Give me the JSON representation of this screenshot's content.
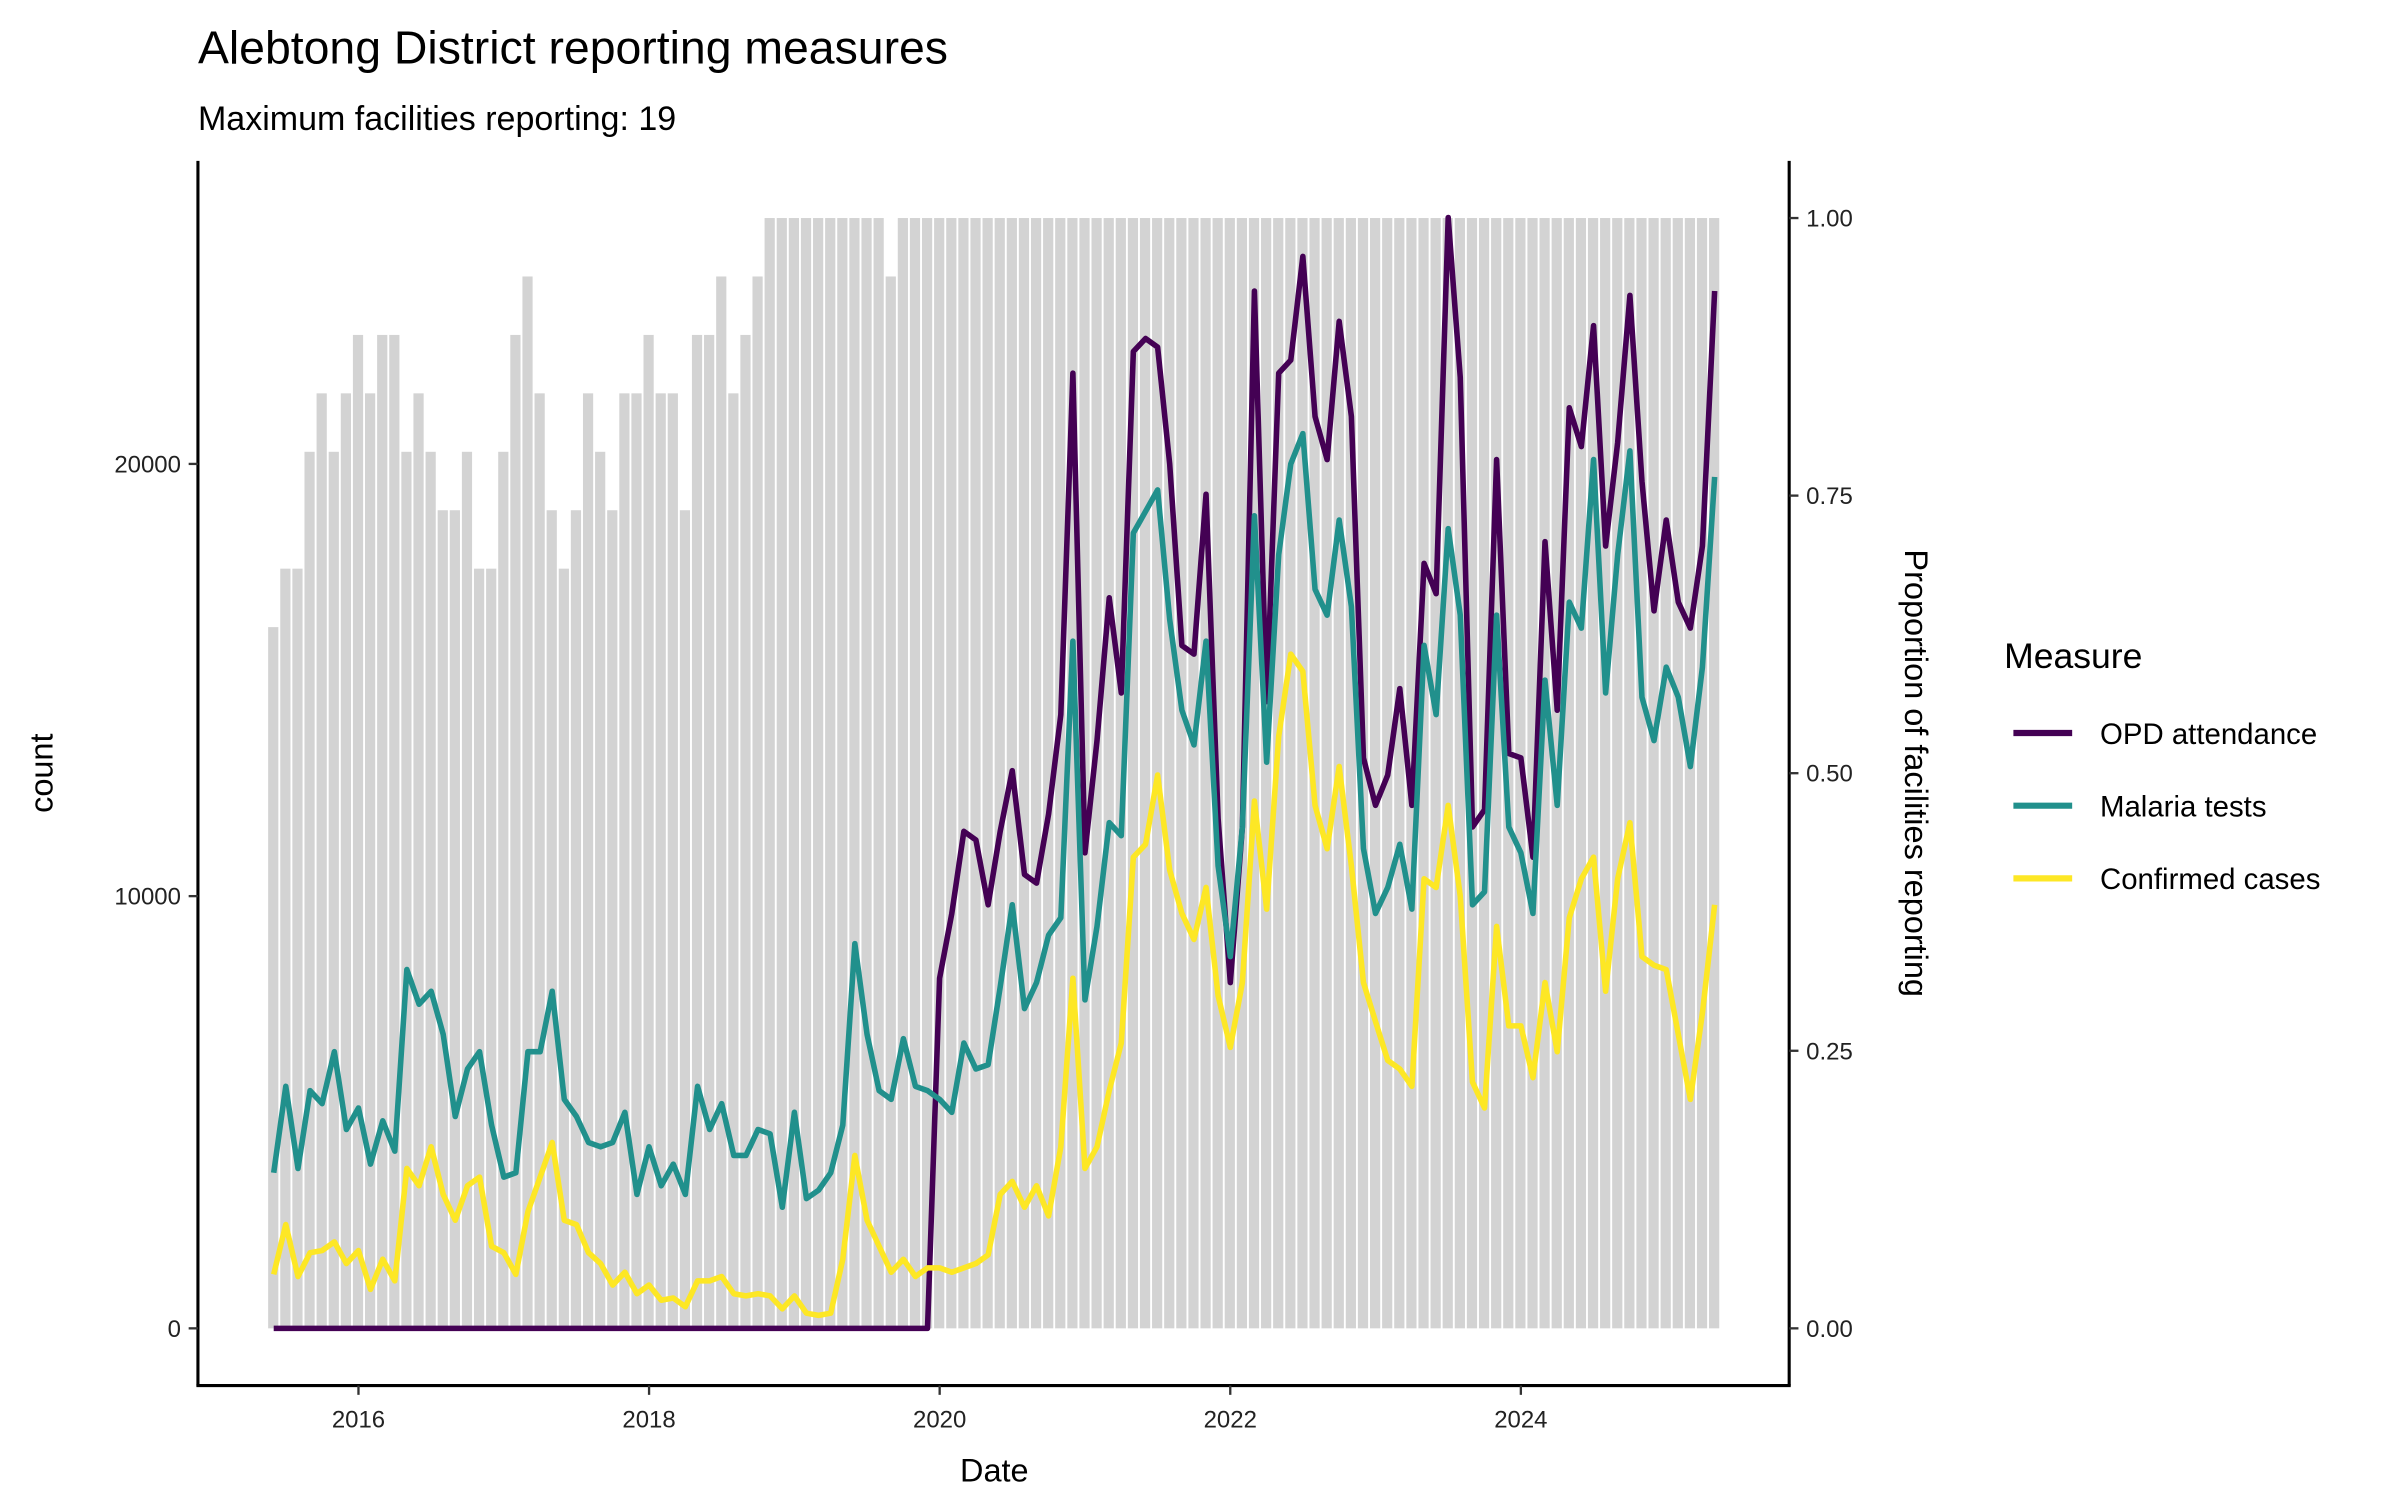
{
  "chart_data": {
    "type": "line",
    "title": "Alebtong District reporting measures",
    "subtitle": "Maximum facilities reporting: 19",
    "xlabel": "Date",
    "ylabel": "count",
    "y2label": "Proportion of facilities reporting",
    "x_start": "2015-06",
    "x_frequency": "monthly",
    "x_count": 120,
    "x_ticks": [
      "2016",
      "2018",
      "2020",
      "2022",
      "2024"
    ],
    "y_ticks": [
      "0",
      "10000",
      "20000"
    ],
    "y2_ticks": [
      "0.00",
      "0.25",
      "0.50",
      "0.75",
      "1.00"
    ],
    "ylim": [
      -1300,
      26900
    ],
    "y2lim": [
      0,
      1
    ],
    "max_facilities": 19,
    "legend": {
      "title": "Measure",
      "placement": "right"
    },
    "bars": {
      "name": "Facilities reporting",
      "color": "#d3d3d3",
      "values": [
        12,
        13,
        13,
        15,
        16,
        15,
        16,
        17,
        16,
        17,
        17,
        15,
        16,
        15,
        14,
        14,
        15,
        13,
        13,
        15,
        17,
        18,
        16,
        14,
        13,
        14,
        16,
        15,
        14,
        16,
        16,
        17,
        16,
        16,
        14,
        17,
        17,
        18,
        16,
        17,
        18,
        19,
        19,
        19,
        19,
        19,
        19,
        19,
        19,
        19,
        19,
        18,
        19,
        19,
        19,
        19,
        19,
        19,
        19,
        19,
        19,
        19,
        19,
        19,
        19,
        19,
        19,
        19,
        19,
        19,
        19,
        19,
        19,
        19,
        19,
        19,
        19,
        19,
        19,
        19,
        19,
        19,
        19,
        19,
        19,
        19,
        19,
        19,
        19,
        19,
        19,
        19,
        19,
        19,
        19,
        19,
        19,
        19,
        19,
        19,
        19,
        19,
        19,
        19,
        19,
        19,
        19,
        19,
        19,
        19,
        19,
        19,
        19,
        19,
        19,
        19,
        19,
        19,
        19,
        19
      ]
    },
    "series": [
      {
        "name": "OPD attendance",
        "color": "#440154",
        "values": [
          0,
          0,
          0,
          0,
          0,
          0,
          0,
          0,
          0,
          0,
          0,
          0,
          0,
          0,
          0,
          0,
          0,
          0,
          0,
          0,
          0,
          0,
          0,
          0,
          0,
          0,
          0,
          0,
          0,
          0,
          0,
          0,
          0,
          0,
          0,
          0,
          0,
          0,
          0,
          0,
          0,
          0,
          0,
          0,
          0,
          0,
          0,
          0,
          0,
          0,
          0,
          0,
          0,
          0,
          0,
          8100,
          9600,
          11500,
          11300,
          9800,
          11500,
          12900,
          10500,
          10300,
          11900,
          14200,
          22100,
          11000,
          13600,
          16900,
          14700,
          22600,
          22900,
          22700,
          20000,
          15800,
          15600,
          19300,
          11800,
          8000,
          11600,
          24000,
          14500,
          22100,
          22400,
          24800,
          21100,
          20100,
          23300,
          21100,
          13200,
          12100,
          12800,
          14800,
          12100,
          17700,
          17000,
          25700,
          22000,
          11600,
          12000,
          20100,
          13300,
          13200,
          10900,
          18200,
          14300,
          21300,
          20400,
          23200,
          18100,
          20500,
          23900,
          19600,
          16600,
          18700,
          16800,
          16200,
          18100,
          24000
        ]
      },
      {
        "name": "Malaria tests",
        "color": "#21908c",
        "values": [
          3600,
          5600,
          3700,
          5500,
          5200,
          6400,
          4600,
          5100,
          3800,
          4800,
          4100,
          8300,
          7500,
          7800,
          6800,
          4900,
          6000,
          6400,
          4700,
          3500,
          3600,
          6400,
          6400,
          7800,
          5300,
          4900,
          4300,
          4200,
          4300,
          5000,
          3100,
          4200,
          3300,
          3800,
          3100,
          5600,
          4600,
          5200,
          4000,
          4000,
          4600,
          4500,
          2800,
          5000,
          3000,
          3200,
          3600,
          4700,
          8900,
          6800,
          5500,
          5300,
          6700,
          5600,
          5500,
          5300,
          5000,
          6600,
          6000,
          6100,
          7900,
          9800,
          7400,
          8000,
          9100,
          9500,
          15900,
          7600,
          9300,
          11700,
          11400,
          18400,
          18900,
          19400,
          16400,
          14300,
          13500,
          15900,
          10700,
          8600,
          11600,
          18800,
          13100,
          17900,
          20000,
          20700,
          17100,
          16500,
          18700,
          16700,
          11100,
          9600,
          10200,
          11200,
          9700,
          15800,
          14200,
          18500,
          16500,
          9800,
          10100,
          16500,
          11600,
          11000,
          9600,
          15000,
          12100,
          16800,
          16200,
          20100,
          14700,
          17900,
          20300,
          14600,
          13600,
          15300,
          14600,
          13000,
          15300,
          19700
        ]
      },
      {
        "name": "Confirmed cases",
        "color": "#fde725",
        "values": [
          1250,
          2400,
          1200,
          1750,
          1800,
          2000,
          1500,
          1800,
          900,
          1600,
          1100,
          3700,
          3300,
          4200,
          3100,
          2500,
          3300,
          3500,
          1900,
          1750,
          1250,
          2700,
          3500,
          4300,
          2500,
          2400,
          1750,
          1500,
          1000,
          1300,
          800,
          1000,
          650,
          700,
          500,
          1100,
          1100,
          1200,
          800,
          750,
          800,
          750,
          450,
          750,
          350,
          300,
          350,
          1600,
          4000,
          2500,
          1900,
          1300,
          1600,
          1200,
          1400,
          1400,
          1300,
          1400,
          1500,
          1700,
          3100,
          3400,
          2800,
          3300,
          2600,
          4200,
          8100,
          3700,
          4200,
          5500,
          6600,
          10900,
          11200,
          12800,
          10600,
          9600,
          9000,
          10200,
          7700,
          6500,
          8000,
          12200,
          9700,
          13700,
          15600,
          15200,
          12100,
          11100,
          13000,
          10700,
          8000,
          7100,
          6200,
          6000,
          5600,
          10400,
          10200,
          12100,
          10000,
          5700,
          5100,
          9300,
          7000,
          7000,
          5800,
          8000,
          6400,
          9500,
          10400,
          10900,
          7800,
          10400,
          11700,
          8600,
          8400,
          8300,
          6800,
          5300,
          7300,
          9800
        ]
      }
    ]
  }
}
